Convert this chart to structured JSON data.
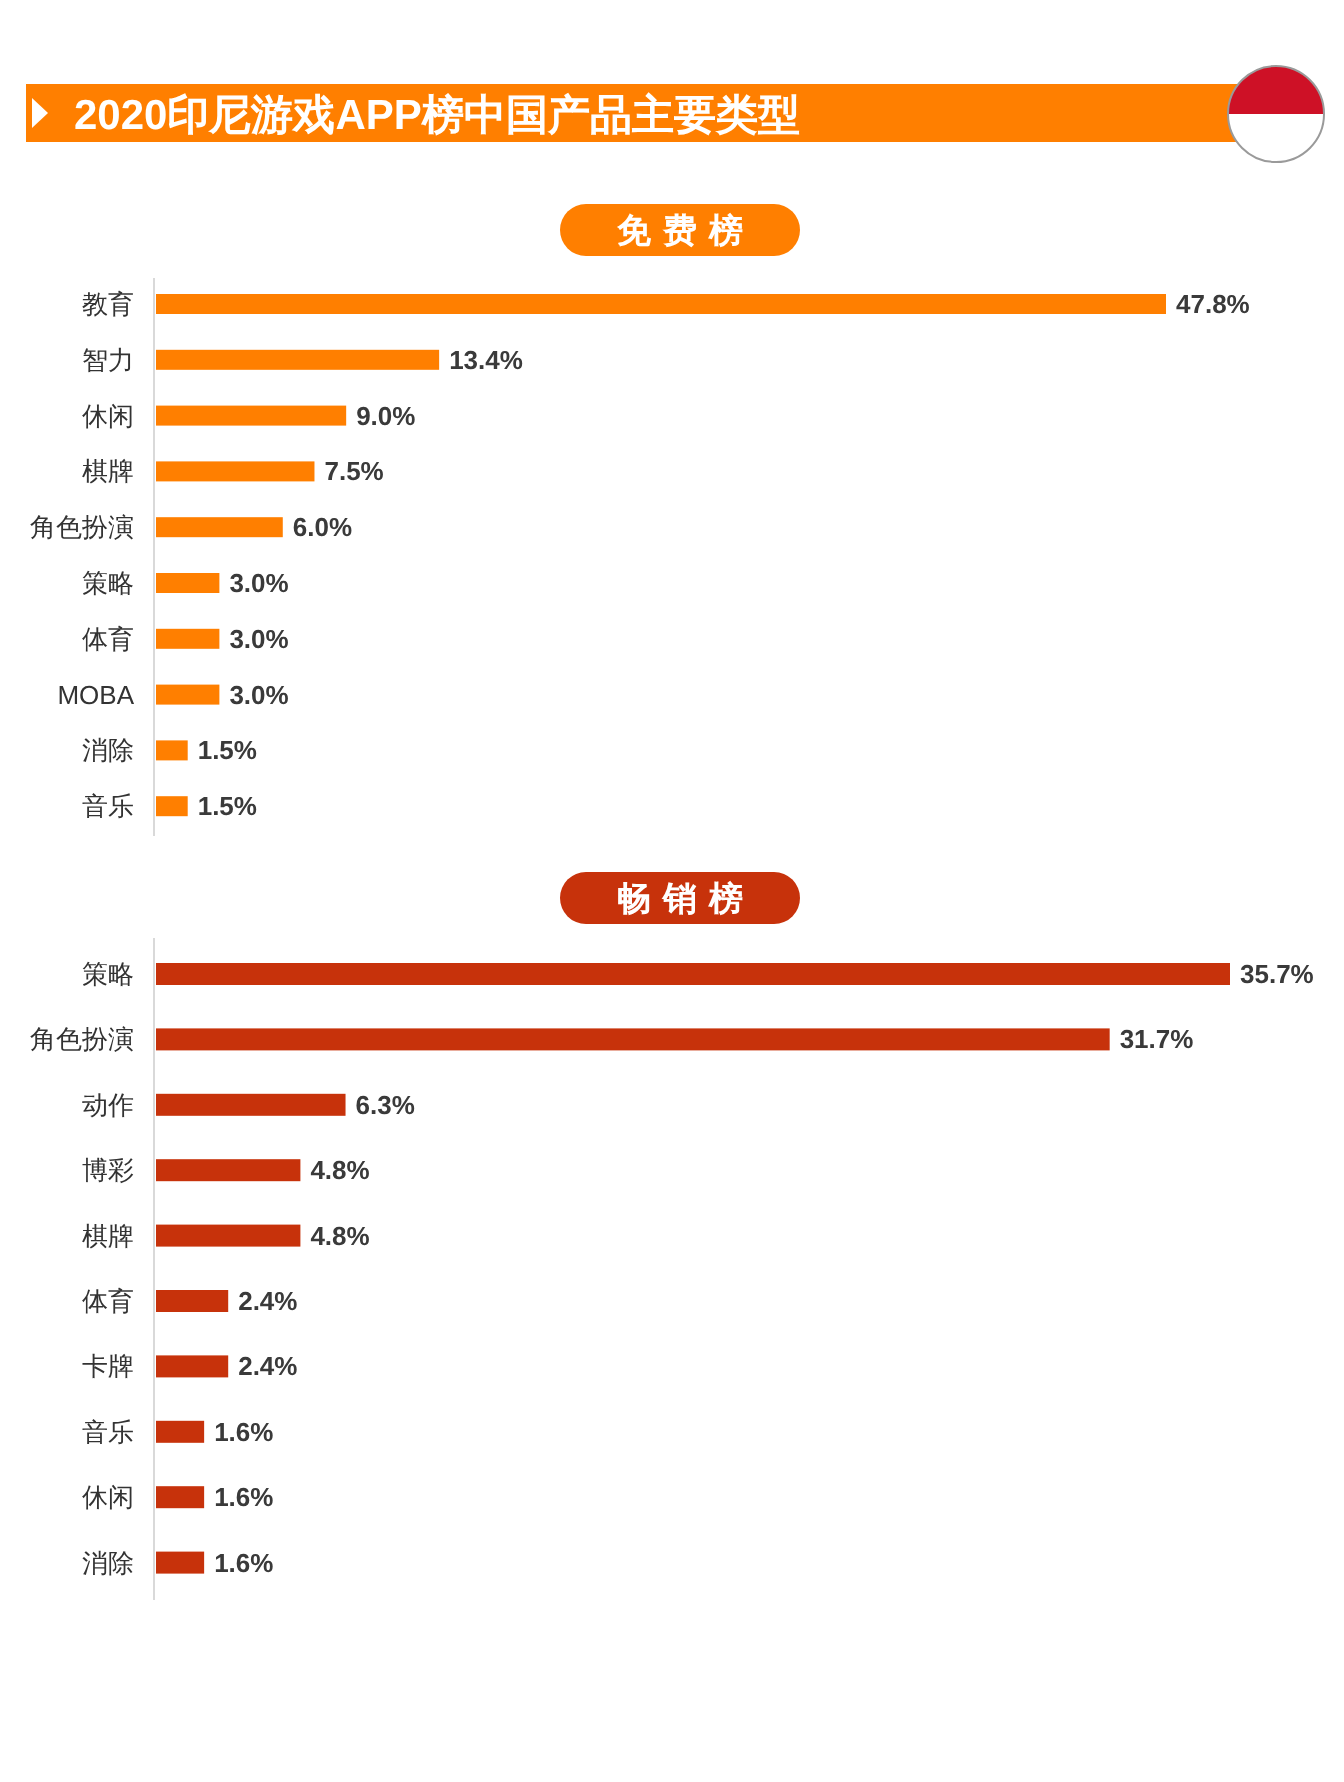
{
  "chart_data": [
    {
      "type": "bar",
      "orientation": "horizontal",
      "title": "2020印尼游戏APP榜中国产品主要类型",
      "subtitle": "免费榜",
      "categories": [
        "教育",
        "智力",
        "休闲",
        "棋牌",
        "角色扮演",
        "策略",
        "体育",
        "MOBA",
        "消除",
        "音乐"
      ],
      "values": [
        47.8,
        13.4,
        9.0,
        7.5,
        6.0,
        3.0,
        3.0,
        3.0,
        1.5,
        1.5
      ],
      "value_labels": [
        "47.8%",
        "13.4%",
        "9.0%",
        "7.5%",
        "6.0%",
        "3.0%",
        "3.0%",
        "3.0%",
        "1.5%",
        "1.5%"
      ],
      "color": "#ff7f00"
    },
    {
      "type": "bar",
      "orientation": "horizontal",
      "title": "畅销榜",
      "categories": [
        "策略",
        "角色扮演",
        "动作",
        "博彩",
        "棋牌",
        "体育",
        "卡牌",
        "音乐",
        "休闲",
        "消除"
      ],
      "values": [
        35.7,
        31.7,
        6.3,
        4.8,
        4.8,
        2.4,
        2.4,
        1.6,
        1.6,
        1.6
      ],
      "value_labels": [
        "35.7%",
        "31.7%",
        "6.3%",
        "4.8%",
        "4.8%",
        "2.4%",
        "2.4%",
        "1.6%",
        "1.6%",
        "1.6%"
      ],
      "color": "#c7320b"
    }
  ]
}
